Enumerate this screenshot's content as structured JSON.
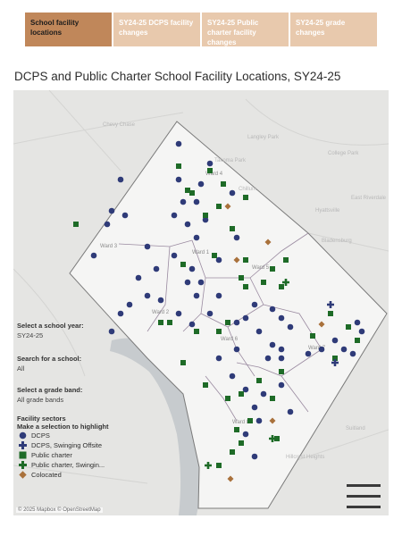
{
  "tabs": [
    {
      "label": "School facility locations",
      "active": true
    },
    {
      "label": "SY24-25 DCPS facility changes",
      "active": false
    },
    {
      "label": "SY24-25 Public charter facility changes",
      "active": false
    },
    {
      "label": "SY24-25 grade changes",
      "active": false
    }
  ],
  "title": "DCPS and Public Charter School Facility Locations, SY24-25",
  "map": {
    "place_labels": [
      "Langley Park",
      "College Park",
      "Hyattsville",
      "Bladensburg",
      "Chillum",
      "Takoma Park",
      "Chevy Chase",
      "East Riverdale",
      "Suitland",
      "Hillcrest Heights"
    ],
    "ward_labels": [
      "Ward 4",
      "Ward 3",
      "Ward 5",
      "Ward 2",
      "Ward 1",
      "Ward 6",
      "Ward 7",
      "Ward 8"
    ],
    "attribution": "© 2025 Mapbox © OpenStreetMap"
  },
  "filters": {
    "school_year": {
      "label": "Select a school year:",
      "value": "SY24-25"
    },
    "search": {
      "label": "Search for a school:",
      "value": "All"
    },
    "grade_band": {
      "label": "Select a grade band:",
      "value": "All grade bands"
    }
  },
  "legend": {
    "title": "Facility sectors",
    "subtitle": "Make a selection to highlight",
    "items": [
      {
        "label": "DCPS",
        "symbol": "circle",
        "color": "#2f3b78"
      },
      {
        "label": "DCPS, Swinging Offsite",
        "symbol": "cross",
        "color": "#2f3b78"
      },
      {
        "label": "Public charter",
        "symbol": "square",
        "color": "#1e6b27"
      },
      {
        "label": "Public charter, Swingin...",
        "symbol": "cross",
        "color": "#1e6b27"
      },
      {
        "label": "Colocated",
        "symbol": "diamond",
        "color": "#a9713b"
      }
    ]
  }
}
